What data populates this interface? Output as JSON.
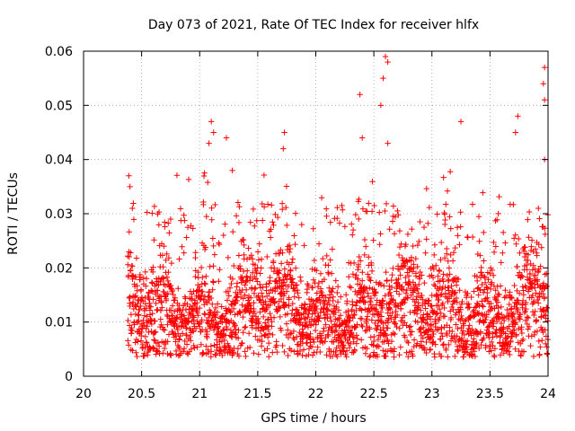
{
  "chart_data": {
    "type": "scatter",
    "title": "Day 073 of 2021, Rate Of TEC Index for receiver hlfx",
    "xlabel": "GPS time / hours",
    "ylabel": "ROTI / TECUs",
    "xlim": [
      20,
      24
    ],
    "ylim": [
      0,
      0.06
    ],
    "grid": true,
    "marker": "plus",
    "color": "#ff0000",
    "x_ticks": [
      20,
      20.5,
      21,
      21.5,
      22,
      22.5,
      23,
      23.5,
      24
    ],
    "x_tick_labels": [
      "20",
      "20.5",
      "21",
      "21.5",
      "22",
      "22.5",
      "23",
      "23.5",
      "24"
    ],
    "y_ticks": [
      0,
      0.01,
      0.02,
      0.03,
      0.04,
      0.05,
      0.06
    ],
    "y_tick_labels": [
      "0",
      "0.01",
      "0.02",
      "0.03",
      "0.04",
      "0.05",
      "0.06"
    ],
    "series": [
      {
        "name": "ROTI",
        "x_range": [
          20.38,
          24.0
        ],
        "point_count": 2600,
        "typical_range": [
          0.003,
          0.02
        ],
        "notable_points": [
          {
            "x": 20.39,
            "y": 0.037
          },
          {
            "x": 20.4,
            "y": 0.035
          },
          {
            "x": 20.42,
            "y": 0.031
          },
          {
            "x": 20.75,
            "y": 0.029
          },
          {
            "x": 21.1,
            "y": 0.047
          },
          {
            "x": 21.12,
            "y": 0.045
          },
          {
            "x": 21.08,
            "y": 0.043
          },
          {
            "x": 21.23,
            "y": 0.044
          },
          {
            "x": 21.73,
            "y": 0.045
          },
          {
            "x": 21.72,
            "y": 0.042
          },
          {
            "x": 22.38,
            "y": 0.052
          },
          {
            "x": 22.4,
            "y": 0.044
          },
          {
            "x": 22.58,
            "y": 0.055
          },
          {
            "x": 22.6,
            "y": 0.059
          },
          {
            "x": 22.62,
            "y": 0.058
          },
          {
            "x": 22.56,
            "y": 0.05
          },
          {
            "x": 22.62,
            "y": 0.043
          },
          {
            "x": 23.25,
            "y": 0.047
          },
          {
            "x": 23.74,
            "y": 0.048
          },
          {
            "x": 23.72,
            "y": 0.045
          },
          {
            "x": 23.97,
            "y": 0.057
          },
          {
            "x": 23.96,
            "y": 0.054
          },
          {
            "x": 23.97,
            "y": 0.051
          },
          {
            "x": 23.97,
            "y": 0.04
          }
        ]
      }
    ]
  }
}
